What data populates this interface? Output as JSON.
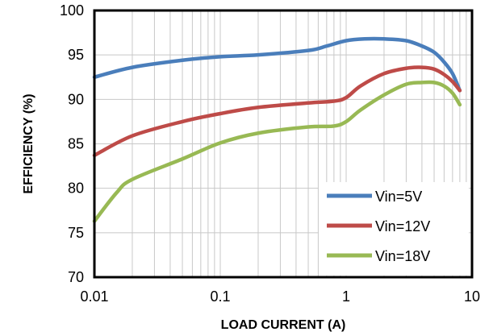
{
  "chart_data": {
    "type": "line",
    "title": "",
    "xlabel": "LOAD CURRENT   (A)",
    "ylabel": "EFFICIENCY   (%)",
    "xscale": "log",
    "xlim": [
      0.01,
      10
    ],
    "ylim": [
      70,
      100
    ],
    "xticks": [
      "0.01",
      "0.1",
      "1",
      "10"
    ],
    "yticks": [
      "70",
      "75",
      "80",
      "85",
      "90",
      "95",
      "100"
    ],
    "grid": true,
    "legend_position": "bottom-right",
    "series": [
      {
        "name": "Vin=5V",
        "color": "#4A7EBB",
        "x": [
          0.01,
          0.02,
          0.05,
          0.1,
          0.2,
          0.5,
          0.7,
          1.0,
          1.4,
          2.0,
          3.0,
          4.0,
          5.0,
          6.0,
          7.0,
          8.0
        ],
        "y": [
          92.5,
          93.6,
          94.4,
          94.8,
          95.0,
          95.5,
          96.0,
          96.6,
          96.8,
          96.8,
          96.6,
          96.0,
          95.3,
          94.2,
          92.9,
          91.0
        ]
      },
      {
        "name": "Vin=12V",
        "color": "#BE4B48",
        "x": [
          0.01,
          0.02,
          0.05,
          0.1,
          0.2,
          0.5,
          0.8,
          1.0,
          1.3,
          2.0,
          3.0,
          4.0,
          5.0,
          6.0,
          7.0,
          8.0
        ],
        "y": [
          83.7,
          85.9,
          87.5,
          88.4,
          89.1,
          89.6,
          89.8,
          90.2,
          91.5,
          92.9,
          93.5,
          93.6,
          93.4,
          92.8,
          92.0,
          91.0
        ]
      },
      {
        "name": "Vin=18V",
        "color": "#98B954",
        "x": [
          0.01,
          0.015,
          0.02,
          0.05,
          0.1,
          0.2,
          0.5,
          0.8,
          1.0,
          1.3,
          2.0,
          3.0,
          4.0,
          5.0,
          6.0,
          7.0,
          8.0
        ],
        "y": [
          76.3,
          79.5,
          81.0,
          83.3,
          85.1,
          86.2,
          86.9,
          87.0,
          87.5,
          88.8,
          90.5,
          91.7,
          91.9,
          91.9,
          91.5,
          90.7,
          89.4
        ]
      }
    ]
  }
}
